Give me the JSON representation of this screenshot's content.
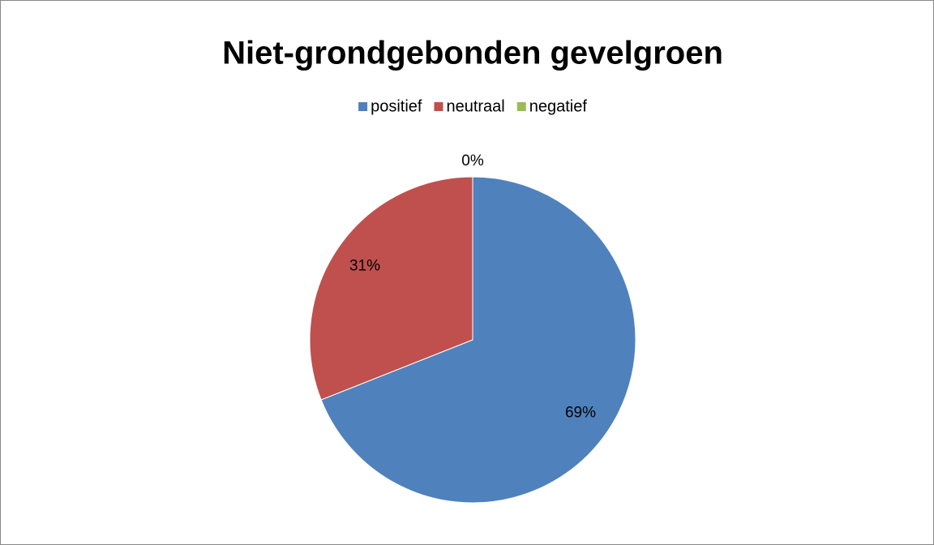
{
  "chart_data": {
    "type": "pie",
    "title": "Niet-grondgebonden gevelgroen",
    "categories": [
      "positief",
      "neutraal",
      "negatief"
    ],
    "values": [
      69,
      31,
      0
    ],
    "value_labels": [
      "69%",
      "31%",
      "0%"
    ],
    "colors": [
      "#4f81bd",
      "#c0504d",
      "#9bbb59"
    ],
    "legend": "top"
  }
}
